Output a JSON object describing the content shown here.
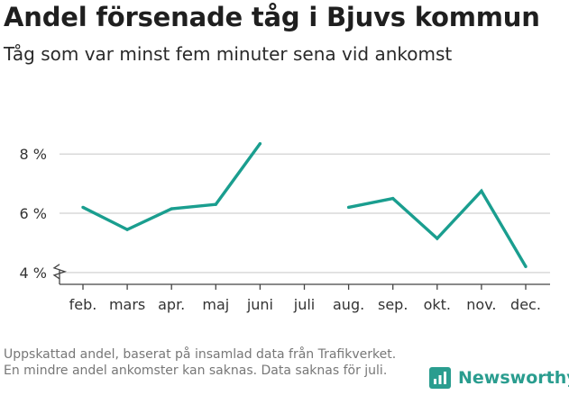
{
  "title": "Andel försenade tåg i Bjuvs kommun",
  "subtitle": "Tåg som var minst fem minuter sena vid ankomst",
  "footnote": "Uppskattad andel, baserat på insamlad data från Trafikverket. En mindre andel ankomster kan saknas. Data saknas för juli.",
  "brand": {
    "name": "Newsworthy",
    "icon": "newsworthy-logo-icon"
  },
  "colors": {
    "line": "#1a9e8f",
    "grid": "#d9d9d9",
    "axis": "#444444",
    "brand": "#2a9d8f"
  },
  "chart_data": {
    "type": "line",
    "categories": [
      "feb.",
      "mars",
      "apr.",
      "maj",
      "juni",
      "juli",
      "aug.",
      "sep.",
      "okt.",
      "nov.",
      "dec."
    ],
    "series": [
      {
        "values": [
          6.2,
          5.45,
          6.15,
          6.3,
          8.35,
          null,
          6.2,
          6.5,
          5.15,
          6.75,
          4.2
        ]
      }
    ],
    "yticks": [
      4,
      6,
      8
    ],
    "ytick_labels": [
      "4 %",
      "6 %",
      "8 %"
    ],
    "ylim": [
      3.6,
      9.1
    ],
    "xlabel": "",
    "ylabel": "",
    "grid": true,
    "axis_break": true
  }
}
